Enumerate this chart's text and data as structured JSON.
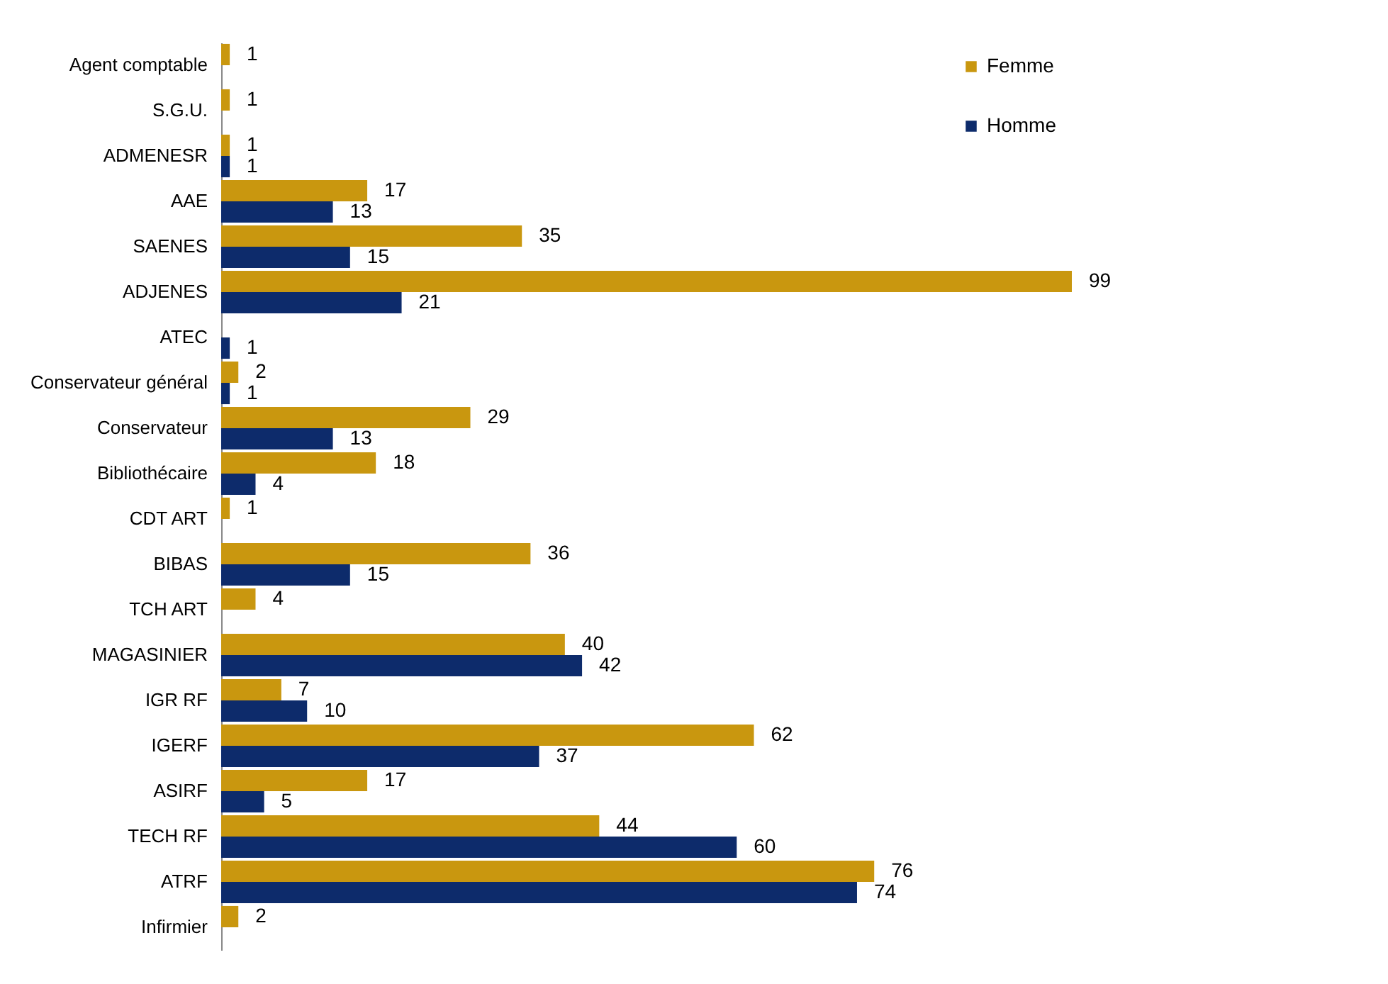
{
  "chart_data": {
    "type": "bar",
    "orientation": "horizontal",
    "categories": [
      "Agent comptable",
      "S.G.U.",
      "ADMENESR",
      "AAE",
      "SAENES",
      "ADJENES",
      "ATEC",
      "Conservateur général",
      "Conservateur",
      "Bibliothécaire",
      "CDT ART",
      "BIBAS",
      "TCH ART",
      "MAGASINIER",
      "IGR RF",
      "IGERF",
      "ASIRF",
      "TECH RF",
      "ATRF",
      "Infirmier"
    ],
    "series": [
      {
        "name": "Femme",
        "color": "#c9970f",
        "values": [
          1,
          1,
          1,
          17,
          35,
          99,
          null,
          2,
          29,
          18,
          1,
          36,
          4,
          40,
          7,
          62,
          17,
          44,
          76,
          2
        ]
      },
      {
        "name": "Homme",
        "color": "#0d2b6b",
        "values": [
          null,
          null,
          1,
          13,
          15,
          21,
          1,
          1,
          13,
          4,
          null,
          15,
          null,
          42,
          10,
          37,
          5,
          60,
          74,
          null
        ]
      }
    ],
    "data_labels": true,
    "legend": "top right",
    "tick_labels": "y"
  }
}
